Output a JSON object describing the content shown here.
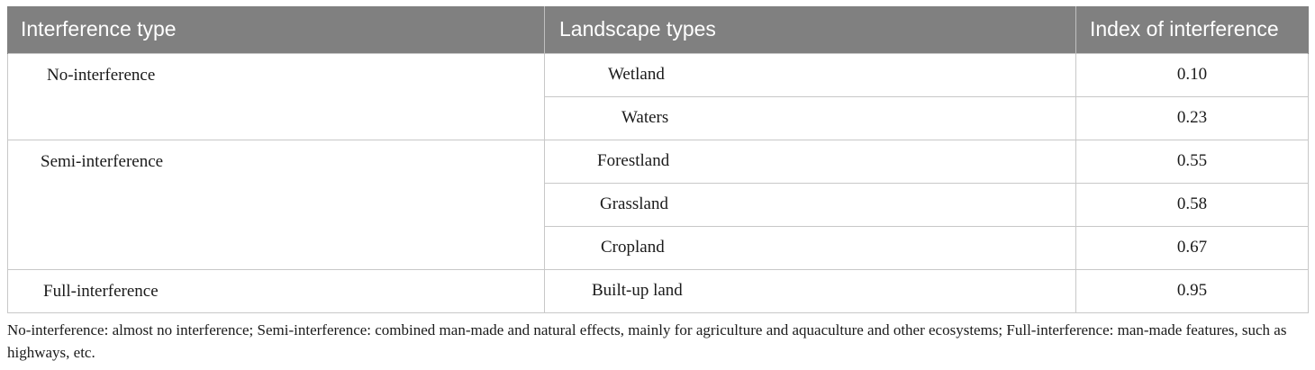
{
  "table": {
    "headers": [
      "Interference type",
      "Landscape types",
      "Index of interference"
    ],
    "groups": [
      {
        "type": "No-interference",
        "rows": [
          {
            "landscape": "Wetland",
            "index": "0.10"
          },
          {
            "landscape": "Waters",
            "index": "0.23"
          }
        ]
      },
      {
        "type": "Semi-interference",
        "rows": [
          {
            "landscape": "Forestland",
            "index": "0.55"
          },
          {
            "landscape": "Grassland",
            "index": "0.58"
          },
          {
            "landscape": "Cropland",
            "index": "0.67"
          }
        ]
      },
      {
        "type": "Full-interference",
        "rows": [
          {
            "landscape": "Built-up land",
            "index": "0.95"
          }
        ]
      }
    ]
  },
  "footnote": "No-interference: almost no interference; Semi-interference: combined man-made and natural effects, mainly for agriculture and aquaculture and other ecosystems; Full-interference: man-made features, such as highways, etc."
}
